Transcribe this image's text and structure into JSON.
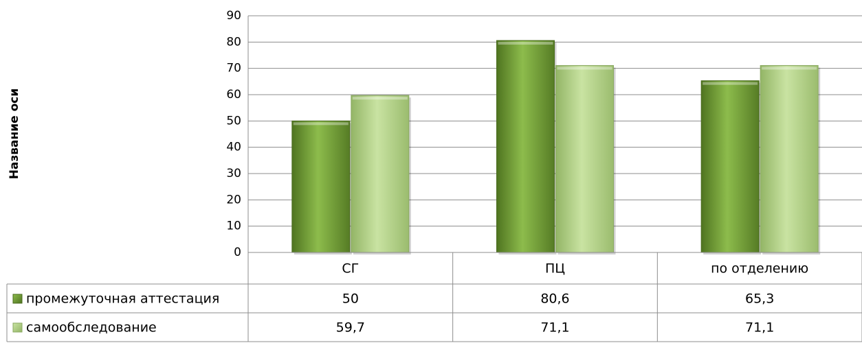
{
  "chart_data": {
    "type": "bar",
    "title": "",
    "xlabel": "",
    "ylabel": "Название оси",
    "ylim": [
      0,
      90
    ],
    "ytick_step": 10,
    "grid": true,
    "legend": "data-table",
    "categories": [
      "СГ",
      "ПЦ",
      "по отделению"
    ],
    "series": [
      {
        "name": "промежуточная аттестация",
        "values": [
          50,
          80.6,
          65.3
        ],
        "labels": [
          "50",
          "80,6",
          "65,3"
        ],
        "color": "#77A23A"
      },
      {
        "name": "самообследование",
        "values": [
          59.7,
          71.1,
          71.1
        ],
        "labels": [
          "59,7",
          "71,1",
          "71,1"
        ],
        "color": "#B5D38A"
      }
    ]
  }
}
